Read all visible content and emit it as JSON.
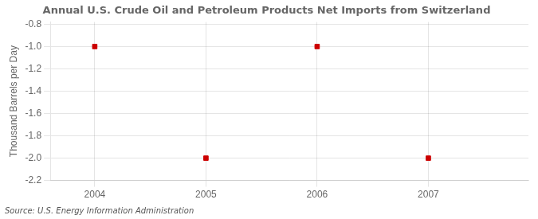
{
  "chart_data": {
    "type": "scatter",
    "title": "Annual U.S. Crude Oil and Petroleum Products Net Imports from Switzerland",
    "ylabel": "Thousand Barrels per Day",
    "annotation": "Source: U.S. Energy Information Administration",
    "x": [
      2004,
      2005,
      2006,
      2007
    ],
    "values": [
      -1.0,
      -2.0,
      -1.0,
      -2.0
    ],
    "color": "#cc0000",
    "marker": "square",
    "xlim": [
      2003.6,
      2007.9
    ],
    "xticks": [
      2004,
      2005,
      2006,
      2007
    ],
    "ylim": [
      -2.2,
      -0.78
    ],
    "yticks": [
      -2.2,
      {
        "value": -2.0,
        "label": "-2.0"
      },
      -1.8,
      -1.6,
      -1.4,
      -1.2,
      {
        "value": -1.0,
        "label": "-1.0"
      },
      -0.8
    ],
    "grid": true
  }
}
